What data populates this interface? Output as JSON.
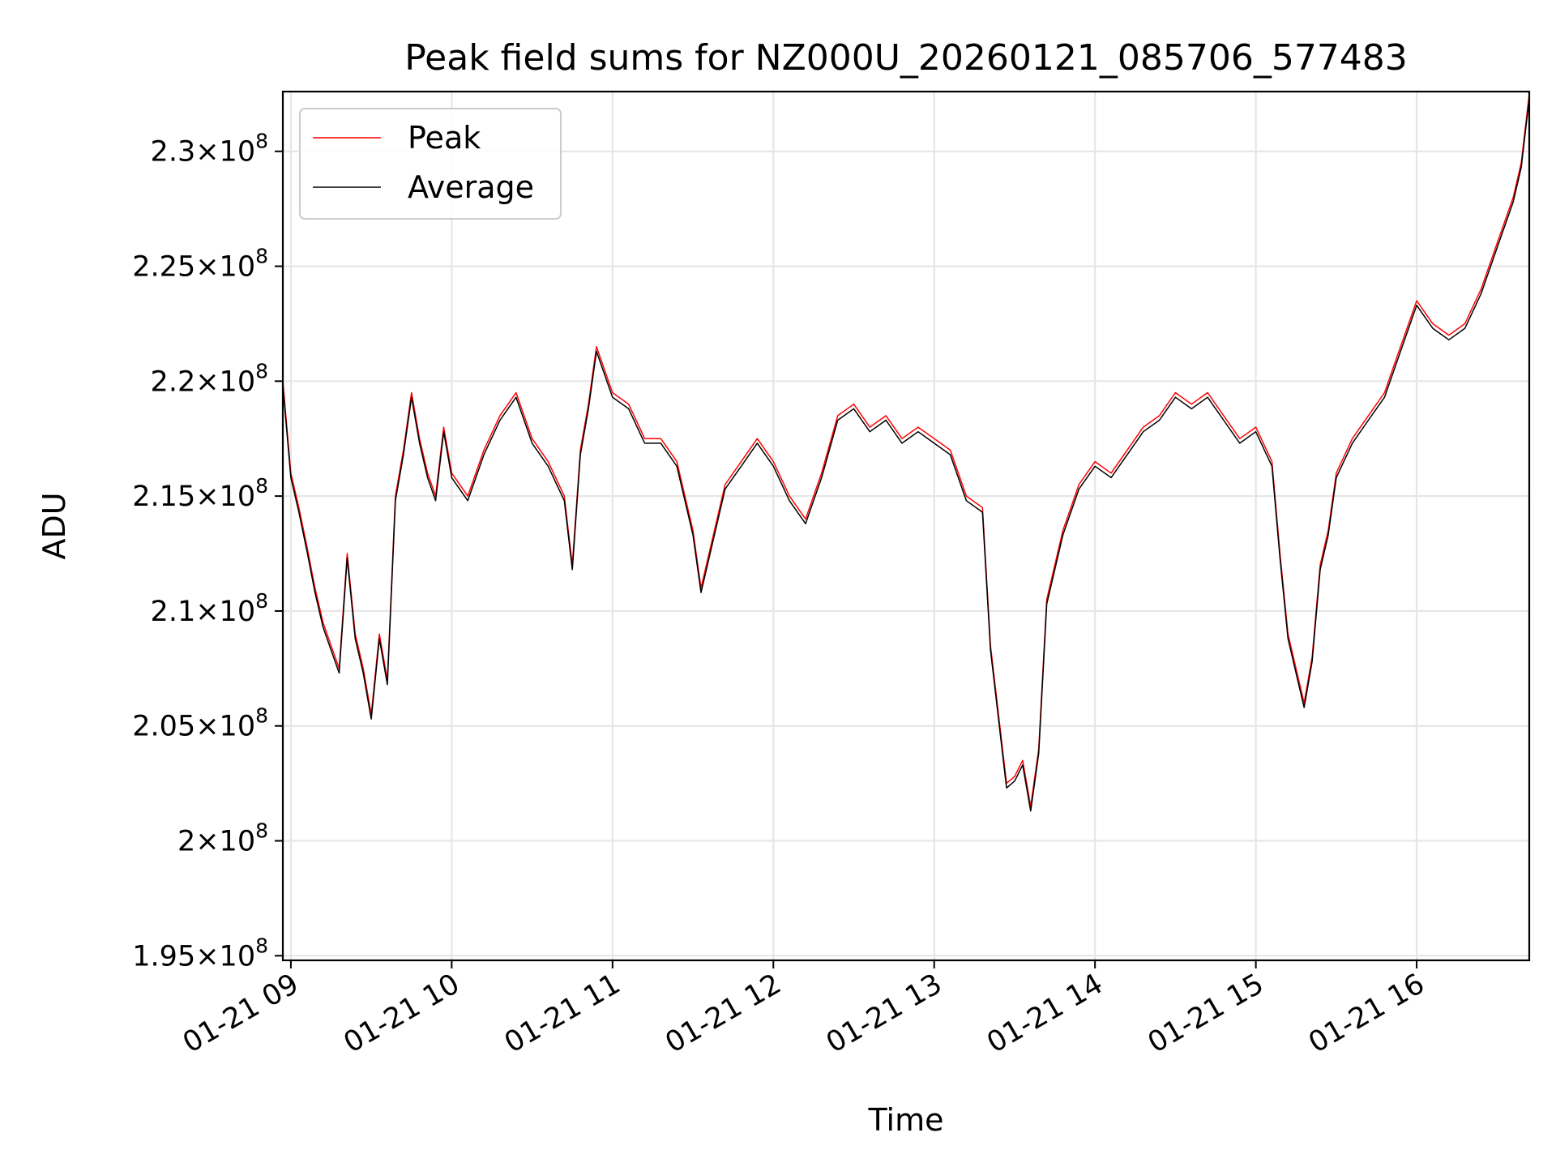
{
  "chart_data": {
    "type": "line",
    "title": "Peak field sums for NZ000U_20260121_085706_577483",
    "xlabel": "Time",
    "ylabel": "ADU",
    "x_range": [
      "2026-01-21 08:57",
      "2026-01-21 16:42"
    ],
    "ylim": [
      194800000,
      232600000
    ],
    "grid": true,
    "legend_position": "upper-left",
    "x_ticks": [
      {
        "value": "2026-01-21 09:00",
        "label": "01-21 09"
      },
      {
        "value": "2026-01-21 10:00",
        "label": "01-21 10"
      },
      {
        "value": "2026-01-21 11:00",
        "label": "01-21 11"
      },
      {
        "value": "2026-01-21 12:00",
        "label": "01-21 12"
      },
      {
        "value": "2026-01-21 13:00",
        "label": "01-21 13"
      },
      {
        "value": "2026-01-21 14:00",
        "label": "01-21 14"
      },
      {
        "value": "2026-01-21 15:00",
        "label": "01-21 15"
      },
      {
        "value": "2026-01-21 16:00",
        "label": "01-21 16"
      }
    ],
    "y_ticks": [
      {
        "value": 195000000,
        "mant": "1.95",
        "exp": "8"
      },
      {
        "value": 200000000,
        "mant": "2",
        "exp": "8"
      },
      {
        "value": 205000000,
        "mant": "2.05",
        "exp": "8"
      },
      {
        "value": 210000000,
        "mant": "2.1",
        "exp": "8"
      },
      {
        "value": 215000000,
        "mant": "2.15",
        "exp": "8"
      },
      {
        "value": 220000000,
        "mant": "2.2",
        "exp": "8"
      },
      {
        "value": 225000000,
        "mant": "2.25",
        "exp": "8"
      },
      {
        "value": 230000000,
        "mant": "2.3",
        "exp": "8"
      }
    ],
    "series": [
      {
        "name": "Peak",
        "color": "#ff0000",
        "points": [
          [
            "2026-01-21 08:57",
            220000000
          ],
          [
            "2026-01-21 09:00",
            216000000
          ],
          [
            "2026-01-21 09:03",
            214500000
          ],
          [
            "2026-01-21 09:06",
            212800000
          ],
          [
            "2026-01-21 09:09",
            211000000
          ],
          [
            "2026-01-21 09:12",
            209500000
          ],
          [
            "2026-01-21 09:15",
            208500000
          ],
          [
            "2026-01-21 09:18",
            207500000
          ],
          [
            "2026-01-21 09:21",
            212500000
          ],
          [
            "2026-01-21 09:24",
            209000000
          ],
          [
            "2026-01-21 09:27",
            207500000
          ],
          [
            "2026-01-21 09:30",
            205500000
          ],
          [
            "2026-01-21 09:33",
            209000000
          ],
          [
            "2026-01-21 09:36",
            207000000
          ],
          [
            "2026-01-21 09:39",
            215000000
          ],
          [
            "2026-01-21 09:42",
            217000000
          ],
          [
            "2026-01-21 09:45",
            219500000
          ],
          [
            "2026-01-21 09:48",
            217500000
          ],
          [
            "2026-01-21 09:51",
            216000000
          ],
          [
            "2026-01-21 09:54",
            215000000
          ],
          [
            "2026-01-21 09:57",
            218000000
          ],
          [
            "2026-01-21 10:00",
            216000000
          ],
          [
            "2026-01-21 10:06",
            215000000
          ],
          [
            "2026-01-21 10:12",
            217000000
          ],
          [
            "2026-01-21 10:18",
            218500000
          ],
          [
            "2026-01-21 10:24",
            219500000
          ],
          [
            "2026-01-21 10:30",
            217500000
          ],
          [
            "2026-01-21 10:36",
            216500000
          ],
          [
            "2026-01-21 10:42",
            215000000
          ],
          [
            "2026-01-21 10:45",
            212000000
          ],
          [
            "2026-01-21 10:48",
            217000000
          ],
          [
            "2026-01-21 10:51",
            219000000
          ],
          [
            "2026-01-21 10:54",
            221500000
          ],
          [
            "2026-01-21 11:00",
            219500000
          ],
          [
            "2026-01-21 11:06",
            219000000
          ],
          [
            "2026-01-21 11:12",
            217500000
          ],
          [
            "2026-01-21 11:18",
            217500000
          ],
          [
            "2026-01-21 11:24",
            216500000
          ],
          [
            "2026-01-21 11:30",
            213500000
          ],
          [
            "2026-01-21 11:33",
            211000000
          ],
          [
            "2026-01-21 11:36",
            212500000
          ],
          [
            "2026-01-21 11:42",
            215500000
          ],
          [
            "2026-01-21 11:48",
            216500000
          ],
          [
            "2026-01-21 11:54",
            217500000
          ],
          [
            "2026-01-21 12:00",
            216500000
          ],
          [
            "2026-01-21 12:06",
            215000000
          ],
          [
            "2026-01-21 12:12",
            214000000
          ],
          [
            "2026-01-21 12:18",
            216000000
          ],
          [
            "2026-01-21 12:24",
            218500000
          ],
          [
            "2026-01-21 12:30",
            219000000
          ],
          [
            "2026-01-21 12:36",
            218000000
          ],
          [
            "2026-01-21 12:42",
            218500000
          ],
          [
            "2026-01-21 12:48",
            217500000
          ],
          [
            "2026-01-21 12:54",
            218000000
          ],
          [
            "2026-01-21 13:00",
            217500000
          ],
          [
            "2026-01-21 13:06",
            217000000
          ],
          [
            "2026-01-21 13:12",
            215000000
          ],
          [
            "2026-01-21 13:18",
            214500000
          ],
          [
            "2026-01-21 13:21",
            208500000
          ],
          [
            "2026-01-21 13:24",
            205500000
          ],
          [
            "2026-01-21 13:27",
            202500000
          ],
          [
            "2026-01-21 13:30",
            202800000
          ],
          [
            "2026-01-21 13:33",
            203500000
          ],
          [
            "2026-01-21 13:36",
            201500000
          ],
          [
            "2026-01-21 13:39",
            204000000
          ],
          [
            "2026-01-21 13:42",
            210500000
          ],
          [
            "2026-01-21 13:48",
            213500000
          ],
          [
            "2026-01-21 13:54",
            215500000
          ],
          [
            "2026-01-21 14:00",
            216500000
          ],
          [
            "2026-01-21 14:06",
            216000000
          ],
          [
            "2026-01-21 14:12",
            217000000
          ],
          [
            "2026-01-21 14:18",
            218000000
          ],
          [
            "2026-01-21 14:24",
            218500000
          ],
          [
            "2026-01-21 14:30",
            219500000
          ],
          [
            "2026-01-21 14:36",
            219000000
          ],
          [
            "2026-01-21 14:42",
            219500000
          ],
          [
            "2026-01-21 14:48",
            218500000
          ],
          [
            "2026-01-21 14:54",
            217500000
          ],
          [
            "2026-01-21 15:00",
            218000000
          ],
          [
            "2026-01-21 15:06",
            216500000
          ],
          [
            "2026-01-21 15:09",
            212500000
          ],
          [
            "2026-01-21 15:12",
            209000000
          ],
          [
            "2026-01-21 15:15",
            207500000
          ],
          [
            "2026-01-21 15:18",
            206000000
          ],
          [
            "2026-01-21 15:21",
            208000000
          ],
          [
            "2026-01-21 15:24",
            212000000
          ],
          [
            "2026-01-21 15:27",
            213500000
          ],
          [
            "2026-01-21 15:30",
            216000000
          ],
          [
            "2026-01-21 15:36",
            217500000
          ],
          [
            "2026-01-21 15:42",
            218500000
          ],
          [
            "2026-01-21 15:48",
            219500000
          ],
          [
            "2026-01-21 15:54",
            221500000
          ],
          [
            "2026-01-21 16:00",
            223500000
          ],
          [
            "2026-01-21 16:06",
            222500000
          ],
          [
            "2026-01-21 16:12",
            222000000
          ],
          [
            "2026-01-21 16:18",
            222500000
          ],
          [
            "2026-01-21 16:24",
            224000000
          ],
          [
            "2026-01-21 16:30",
            226000000
          ],
          [
            "2026-01-21 16:36",
            228000000
          ],
          [
            "2026-01-21 16:39",
            229500000
          ],
          [
            "2026-01-21 16:42",
            232500000
          ]
        ]
      },
      {
        "name": "Average",
        "color": "#000000",
        "points": [
          [
            "2026-01-21 08:57",
            219800000
          ],
          [
            "2026-01-21 09:00",
            215800000
          ],
          [
            "2026-01-21 09:03",
            214300000
          ],
          [
            "2026-01-21 09:06",
            212600000
          ],
          [
            "2026-01-21 09:09",
            210800000
          ],
          [
            "2026-01-21 09:12",
            209300000
          ],
          [
            "2026-01-21 09:15",
            208300000
          ],
          [
            "2026-01-21 09:18",
            207300000
          ],
          [
            "2026-01-21 09:21",
            212300000
          ],
          [
            "2026-01-21 09:24",
            208800000
          ],
          [
            "2026-01-21 09:27",
            207300000
          ],
          [
            "2026-01-21 09:30",
            205300000
          ],
          [
            "2026-01-21 09:33",
            208800000
          ],
          [
            "2026-01-21 09:36",
            206800000
          ],
          [
            "2026-01-21 09:39",
            214800000
          ],
          [
            "2026-01-21 09:42",
            216800000
          ],
          [
            "2026-01-21 09:45",
            219300000
          ],
          [
            "2026-01-21 09:48",
            217300000
          ],
          [
            "2026-01-21 09:51",
            215800000
          ],
          [
            "2026-01-21 09:54",
            214800000
          ],
          [
            "2026-01-21 09:57",
            217800000
          ],
          [
            "2026-01-21 10:00",
            215800000
          ],
          [
            "2026-01-21 10:06",
            214800000
          ],
          [
            "2026-01-21 10:12",
            216800000
          ],
          [
            "2026-01-21 10:18",
            218300000
          ],
          [
            "2026-01-21 10:24",
            219300000
          ],
          [
            "2026-01-21 10:30",
            217300000
          ],
          [
            "2026-01-21 10:36",
            216300000
          ],
          [
            "2026-01-21 10:42",
            214800000
          ],
          [
            "2026-01-21 10:45",
            211800000
          ],
          [
            "2026-01-21 10:48",
            216800000
          ],
          [
            "2026-01-21 10:51",
            218800000
          ],
          [
            "2026-01-21 10:54",
            221300000
          ],
          [
            "2026-01-21 11:00",
            219300000
          ],
          [
            "2026-01-21 11:06",
            218800000
          ],
          [
            "2026-01-21 11:12",
            217300000
          ],
          [
            "2026-01-21 11:18",
            217300000
          ],
          [
            "2026-01-21 11:24",
            216300000
          ],
          [
            "2026-01-21 11:30",
            213300000
          ],
          [
            "2026-01-21 11:33",
            210800000
          ],
          [
            "2026-01-21 11:36",
            212300000
          ],
          [
            "2026-01-21 11:42",
            215300000
          ],
          [
            "2026-01-21 11:48",
            216300000
          ],
          [
            "2026-01-21 11:54",
            217300000
          ],
          [
            "2026-01-21 12:00",
            216300000
          ],
          [
            "2026-01-21 12:06",
            214800000
          ],
          [
            "2026-01-21 12:12",
            213800000
          ],
          [
            "2026-01-21 12:18",
            215800000
          ],
          [
            "2026-01-21 12:24",
            218300000
          ],
          [
            "2026-01-21 12:30",
            218800000
          ],
          [
            "2026-01-21 12:36",
            217800000
          ],
          [
            "2026-01-21 12:42",
            218300000
          ],
          [
            "2026-01-21 12:48",
            217300000
          ],
          [
            "2026-01-21 12:54",
            217800000
          ],
          [
            "2026-01-21 13:00",
            217300000
          ],
          [
            "2026-01-21 13:06",
            216800000
          ],
          [
            "2026-01-21 13:12",
            214800000
          ],
          [
            "2026-01-21 13:18",
            214300000
          ],
          [
            "2026-01-21 13:21",
            208300000
          ],
          [
            "2026-01-21 13:24",
            205300000
          ],
          [
            "2026-01-21 13:27",
            202300000
          ],
          [
            "2026-01-21 13:30",
            202600000
          ],
          [
            "2026-01-21 13:33",
            203300000
          ],
          [
            "2026-01-21 13:36",
            201300000
          ],
          [
            "2026-01-21 13:39",
            203800000
          ],
          [
            "2026-01-21 13:42",
            210300000
          ],
          [
            "2026-01-21 13:48",
            213300000
          ],
          [
            "2026-01-21 13:54",
            215300000
          ],
          [
            "2026-01-21 14:00",
            216300000
          ],
          [
            "2026-01-21 14:06",
            215800000
          ],
          [
            "2026-01-21 14:12",
            216800000
          ],
          [
            "2026-01-21 14:18",
            217800000
          ],
          [
            "2026-01-21 14:24",
            218300000
          ],
          [
            "2026-01-21 14:30",
            219300000
          ],
          [
            "2026-01-21 14:36",
            218800000
          ],
          [
            "2026-01-21 14:42",
            219300000
          ],
          [
            "2026-01-21 14:48",
            218300000
          ],
          [
            "2026-01-21 14:54",
            217300000
          ],
          [
            "2026-01-21 15:00",
            217800000
          ],
          [
            "2026-01-21 15:06",
            216300000
          ],
          [
            "2026-01-21 15:09",
            212300000
          ],
          [
            "2026-01-21 15:12",
            208800000
          ],
          [
            "2026-01-21 15:15",
            207300000
          ],
          [
            "2026-01-21 15:18",
            205800000
          ],
          [
            "2026-01-21 15:21",
            207800000
          ],
          [
            "2026-01-21 15:24",
            211800000
          ],
          [
            "2026-01-21 15:27",
            213300000
          ],
          [
            "2026-01-21 15:30",
            215800000
          ],
          [
            "2026-01-21 15:36",
            217300000
          ],
          [
            "2026-01-21 15:42",
            218300000
          ],
          [
            "2026-01-21 15:48",
            219300000
          ],
          [
            "2026-01-21 15:54",
            221300000
          ],
          [
            "2026-01-21 16:00",
            223300000
          ],
          [
            "2026-01-21 16:06",
            222300000
          ],
          [
            "2026-01-21 16:12",
            221800000
          ],
          [
            "2026-01-21 16:18",
            222300000
          ],
          [
            "2026-01-21 16:24",
            223800000
          ],
          [
            "2026-01-21 16:30",
            225800000
          ],
          [
            "2026-01-21 16:36",
            227800000
          ],
          [
            "2026-01-21 16:39",
            229300000
          ],
          [
            "2026-01-21 16:42",
            232300000
          ]
        ]
      }
    ]
  }
}
